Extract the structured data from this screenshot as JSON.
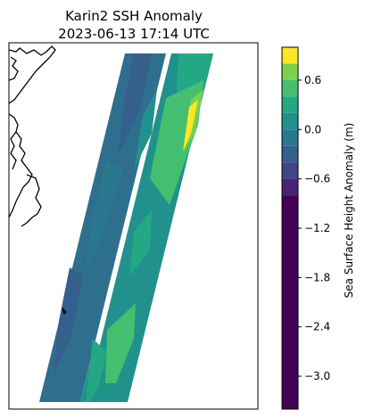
{
  "chart_data": {
    "type": "heatmap",
    "title": "Karin2 SSH Anomaly",
    "subtitle": "2023-06-13 17:14 UTC",
    "colorbar": {
      "label": "Sea Surface Height Anomaly (m)",
      "range": [
        -3.4,
        1.0
      ],
      "ticks": [
        {
          "value": 0.6,
          "label": "0.6"
        },
        {
          "value": 0.0,
          "label": "0.0"
        },
        {
          "value": -0.6,
          "label": "−0.6"
        },
        {
          "value": -1.2,
          "label": "−1.2"
        },
        {
          "value": -1.8,
          "label": "−1.8"
        },
        {
          "value": -2.4,
          "label": "−2.4"
        },
        {
          "value": -3.0,
          "label": "−3.0"
        }
      ],
      "levels": [
        {
          "from": -3.4,
          "to": -0.8,
          "color": "#440154"
        },
        {
          "from": -0.8,
          "to": -0.6,
          "color": "#482475"
        },
        {
          "from": -0.6,
          "to": -0.4,
          "color": "#414487"
        },
        {
          "from": -0.4,
          "to": -0.2,
          "color": "#355f8d"
        },
        {
          "from": -0.2,
          "to": 0.0,
          "color": "#2a788e"
        },
        {
          "from": 0.0,
          "to": 0.2,
          "color": "#21918c"
        },
        {
          "from": 0.2,
          "to": 0.4,
          "color": "#22a884"
        },
        {
          "from": 0.4,
          "to": 0.6,
          "color": "#44bf70"
        },
        {
          "from": 0.6,
          "to": 0.8,
          "color": "#7ad151"
        },
        {
          "from": 0.8,
          "to": 1.0,
          "color": "#fde725"
        }
      ]
    },
    "swaths": [
      {
        "name": "",
        "dominant_level": -0.3
      },
      {
        "name": "",
        "dominant_level": 0.4
      }
    ],
    "coastline": true
  }
}
